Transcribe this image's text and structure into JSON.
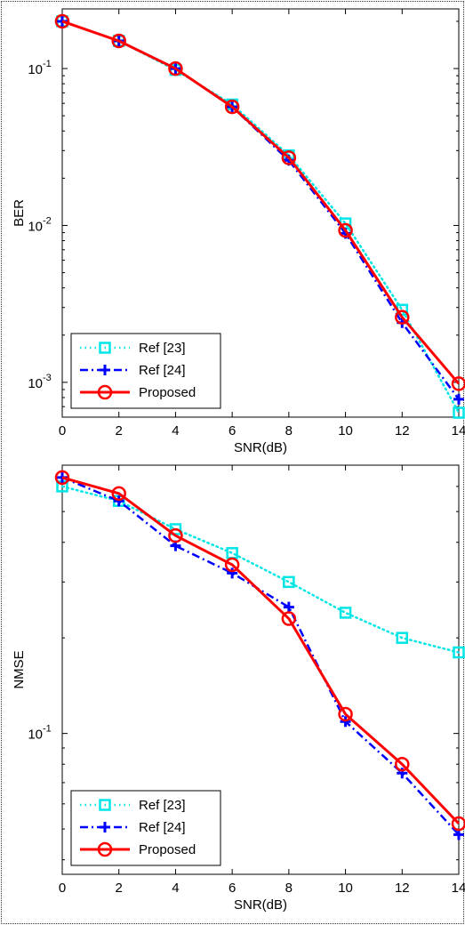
{
  "chart_data": [
    {
      "type": "line",
      "title": "",
      "xlabel": "SNR(dB)",
      "ylabel": "BER",
      "yscale": "log",
      "xlim": [
        0,
        14
      ],
      "ylim": [
        0.0006,
        0.24
      ],
      "xticks": [
        0,
        2,
        4,
        6,
        8,
        10,
        12,
        14
      ],
      "xtick_labels": [
        "0",
        "2",
        "4",
        "6",
        "8",
        "10",
        "12",
        "14"
      ],
      "yticks": [
        0.1,
        0.01,
        0.001
      ],
      "ytick_labels": [
        {
          "base": "10",
          "exp": "-1"
        },
        {
          "base": "10",
          "exp": "-2"
        },
        {
          "base": "10",
          "exp": "-3"
        }
      ],
      "grid": false,
      "legend_position": "bottom-left",
      "x": [
        0,
        2,
        4,
        6,
        8,
        10,
        12,
        14
      ],
      "series": [
        {
          "name": "Ref [23]",
          "color": "#00e5e5",
          "line": "dotted",
          "marker": "square",
          "values": [
            0.2,
            0.15,
            0.098,
            0.059,
            0.028,
            0.0103,
            0.0029,
            0.00064
          ]
        },
        {
          "name": "Ref [24]",
          "color": "#0000ff",
          "line": "dashdot",
          "marker": "plus",
          "values": [
            0.2,
            0.15,
            0.1,
            0.057,
            0.026,
            0.0089,
            0.0024,
            0.00078
          ]
        },
        {
          "name": "Proposed",
          "color": "#ff0000",
          "line": "solid",
          "marker": "circle",
          "values": [
            0.2,
            0.15,
            0.1,
            0.057,
            0.027,
            0.0093,
            0.0026,
            0.00098
          ]
        }
      ]
    },
    {
      "type": "line",
      "title": "",
      "xlabel": "SNR(dB)",
      "ylabel": "NMSE",
      "yscale": "log",
      "xlim": [
        0,
        14
      ],
      "ylim": [
        0.036,
        0.7
      ],
      "xticks": [
        0,
        2,
        4,
        6,
        8,
        10,
        12,
        14
      ],
      "xtick_labels": [
        "0",
        "2",
        "4",
        "6",
        "8",
        "10",
        "12",
        "14"
      ],
      "yticks": [
        0.1
      ],
      "ytick_labels": [
        {
          "base": "10",
          "exp": "-1"
        }
      ],
      "grid": false,
      "legend_position": "bottom-left",
      "x": [
        0,
        2,
        4,
        6,
        8,
        10,
        12,
        14
      ],
      "series": [
        {
          "name": "Ref [23]",
          "color": "#00e5e5",
          "line": "dotted",
          "marker": "square",
          "values": [
            0.6,
            0.54,
            0.44,
            0.37,
            0.3,
            0.24,
            0.2,
            0.18
          ]
        },
        {
          "name": "Ref [24]",
          "color": "#0000ff",
          "line": "dashdot",
          "marker": "plus",
          "values": [
            0.64,
            0.54,
            0.39,
            0.32,
            0.25,
            0.109,
            0.075,
            0.048
          ]
        },
        {
          "name": "Proposed",
          "color": "#ff0000",
          "line": "solid",
          "marker": "circle",
          "values": [
            0.64,
            0.57,
            0.42,
            0.34,
            0.23,
            0.115,
            0.08,
            0.052
          ]
        }
      ]
    }
  ]
}
